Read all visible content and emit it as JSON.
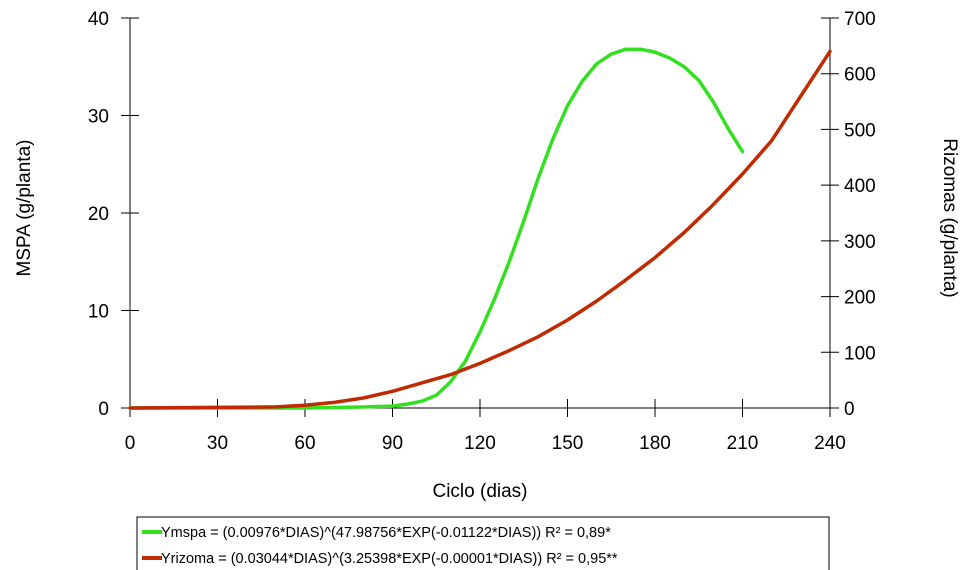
{
  "chart_data": {
    "type": "line",
    "xlabel": "Ciclo (dias)",
    "ylabel_left": "MSPA (g/planta)",
    "ylabel_right": "Rizomas (g/planta)",
    "xlim": [
      0,
      240
    ],
    "ylim_left": [
      0,
      40
    ],
    "ylim_right": [
      0,
      700
    ],
    "xticks": [
      "0",
      "30",
      "60",
      "90",
      "120",
      "150",
      "180",
      "210",
      "240"
    ],
    "yticks_left": [
      "0",
      "10",
      "20",
      "30",
      "40"
    ],
    "yticks_right": [
      "0",
      "100",
      "200",
      "300",
      "400",
      "500",
      "600",
      "700"
    ],
    "grid": false,
    "legend_position": "bottom",
    "series": [
      {
        "name": "Ymspa = (0.00976*DIAS)^(47.98756*EXP(-0.01122*DIAS))  R² = 0,89*",
        "axis": "left",
        "color": "#33e020",
        "x": [
          0,
          30,
          60,
          80,
          90,
          95,
          100,
          105,
          110,
          115,
          120,
          125,
          130,
          135,
          140,
          145,
          150,
          155,
          160,
          165,
          170,
          175,
          180,
          185,
          190,
          195,
          200,
          205,
          210
        ],
        "y": [
          0,
          0,
          0,
          0.1,
          0.2,
          0.4,
          0.7,
          1.3,
          2.7,
          4.8,
          7.8,
          11.2,
          15.0,
          19.2,
          23.6,
          27.6,
          31.0,
          33.5,
          35.3,
          36.3,
          36.8,
          36.8,
          36.5,
          35.9,
          35.0,
          33.6,
          31.4,
          28.7,
          26.3
        ]
      },
      {
        "name": "Yrizoma = (0.03044*DIAS)^(3.25398*EXP(-0.00001*DIAS))  R² = 0,95**",
        "axis": "right",
        "color": "#c02a00",
        "x": [
          0,
          30,
          50,
          60,
          70,
          80,
          90,
          100,
          110,
          120,
          130,
          140,
          150,
          160,
          170,
          180,
          190,
          200,
          210,
          220,
          230,
          240
        ],
        "y": [
          0,
          1,
          2,
          5,
          10,
          18,
          30,
          45,
          60,
          80,
          103,
          128,
          158,
          192,
          230,
          270,
          315,
          365,
          420,
          480,
          560,
          640
        ]
      }
    ]
  }
}
